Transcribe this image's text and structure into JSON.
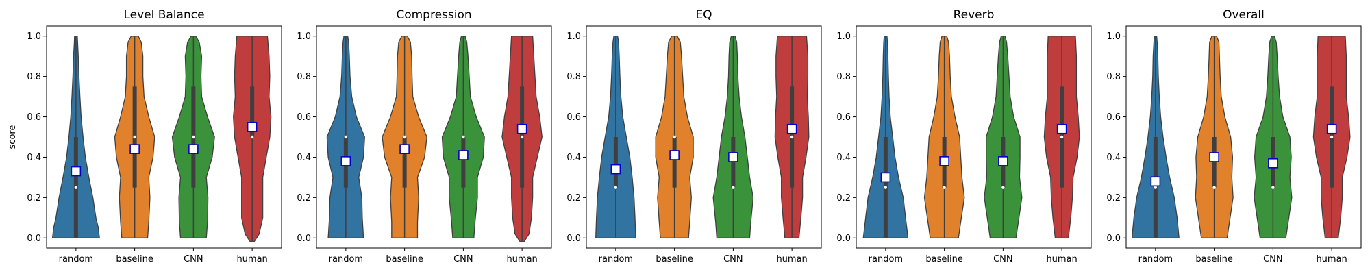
{
  "figure": {
    "ylabel": "score"
  },
  "chart_data": [
    {
      "type": "violin",
      "title": "Level Balance",
      "xlabel": "",
      "ylabel": "score",
      "categories": [
        "random",
        "baseline",
        "CNN",
        "human"
      ],
      "ylim": [
        -0.05,
        1.05
      ],
      "yticks": [
        "0.0",
        "0.2",
        "0.4",
        "0.6",
        "0.8",
        "1.0"
      ],
      "means": [
        0.33,
        0.44,
        0.44,
        0.55
      ],
      "medians": [
        0.25,
        0.5,
        0.5,
        0.5
      ],
      "quartiles": [
        [
          0.0,
          0.5
        ],
        [
          0.25,
          0.75
        ],
        [
          0.25,
          0.75
        ],
        [
          0.5,
          0.75
        ]
      ]
    },
    {
      "type": "violin",
      "title": "Compression",
      "xlabel": "",
      "ylabel": "",
      "categories": [
        "random",
        "baseline",
        "CNN",
        "human"
      ],
      "ylim": [
        -0.05,
        1.05
      ],
      "yticks": [
        "0.0",
        "0.2",
        "0.4",
        "0.6",
        "0.8",
        "1.0"
      ],
      "means": [
        0.38,
        0.44,
        0.41,
        0.54
      ],
      "medians": [
        0.5,
        0.5,
        0.5,
        0.5
      ],
      "quartiles": [
        [
          0.25,
          0.5
        ],
        [
          0.25,
          0.5
        ],
        [
          0.25,
          0.5
        ],
        [
          0.25,
          0.75
        ]
      ]
    },
    {
      "type": "violin",
      "title": "EQ",
      "xlabel": "",
      "ylabel": "",
      "categories": [
        "random",
        "baseline",
        "CNN",
        "human"
      ],
      "ylim": [
        -0.05,
        1.05
      ],
      "yticks": [
        "0.0",
        "0.2",
        "0.4",
        "0.6",
        "0.8",
        "1.0"
      ],
      "means": [
        0.34,
        0.41,
        0.4,
        0.54
      ],
      "medians": [
        0.25,
        0.5,
        0.25,
        0.5
      ],
      "quartiles": [
        [
          0.25,
          0.5
        ],
        [
          0.25,
          0.5
        ],
        [
          0.25,
          0.5
        ],
        [
          0.25,
          0.75
        ]
      ]
    },
    {
      "type": "violin",
      "title": "Reverb",
      "xlabel": "",
      "ylabel": "",
      "categories": [
        "random",
        "baseline",
        "CNN",
        "human"
      ],
      "ylim": [
        -0.05,
        1.05
      ],
      "yticks": [
        "0.0",
        "0.2",
        "0.4",
        "0.6",
        "0.8",
        "1.0"
      ],
      "means": [
        0.3,
        0.38,
        0.38,
        0.54
      ],
      "medians": [
        0.25,
        0.25,
        0.25,
        0.5
      ],
      "quartiles": [
        [
          0.0,
          0.5
        ],
        [
          0.25,
          0.5
        ],
        [
          0.25,
          0.5
        ],
        [
          0.25,
          0.75
        ]
      ]
    },
    {
      "type": "violin",
      "title": "Overall",
      "xlabel": "",
      "ylabel": "",
      "categories": [
        "random",
        "baseline",
        "CNN",
        "human"
      ],
      "ylim": [
        -0.05,
        1.05
      ],
      "yticks": [
        "0.0",
        "0.2",
        "0.4",
        "0.6",
        "0.8",
        "1.0"
      ],
      "means": [
        0.28,
        0.4,
        0.37,
        0.54
      ],
      "medians": [
        0.25,
        0.25,
        0.25,
        0.5
      ],
      "quartiles": [
        [
          0.0,
          0.5
        ],
        [
          0.25,
          0.5
        ],
        [
          0.25,
          0.5
        ],
        [
          0.25,
          0.75
        ]
      ]
    }
  ],
  "colors": {
    "series": [
      "#3274a1",
      "#e1812c",
      "#3a923a",
      "#c03d3e"
    ],
    "mean_marker_fill": "#ffffff",
    "mean_marker_edge": "#0000cc",
    "outline": "#3f3f3f",
    "box": "#3f3f3f",
    "median": "#ffffff"
  }
}
